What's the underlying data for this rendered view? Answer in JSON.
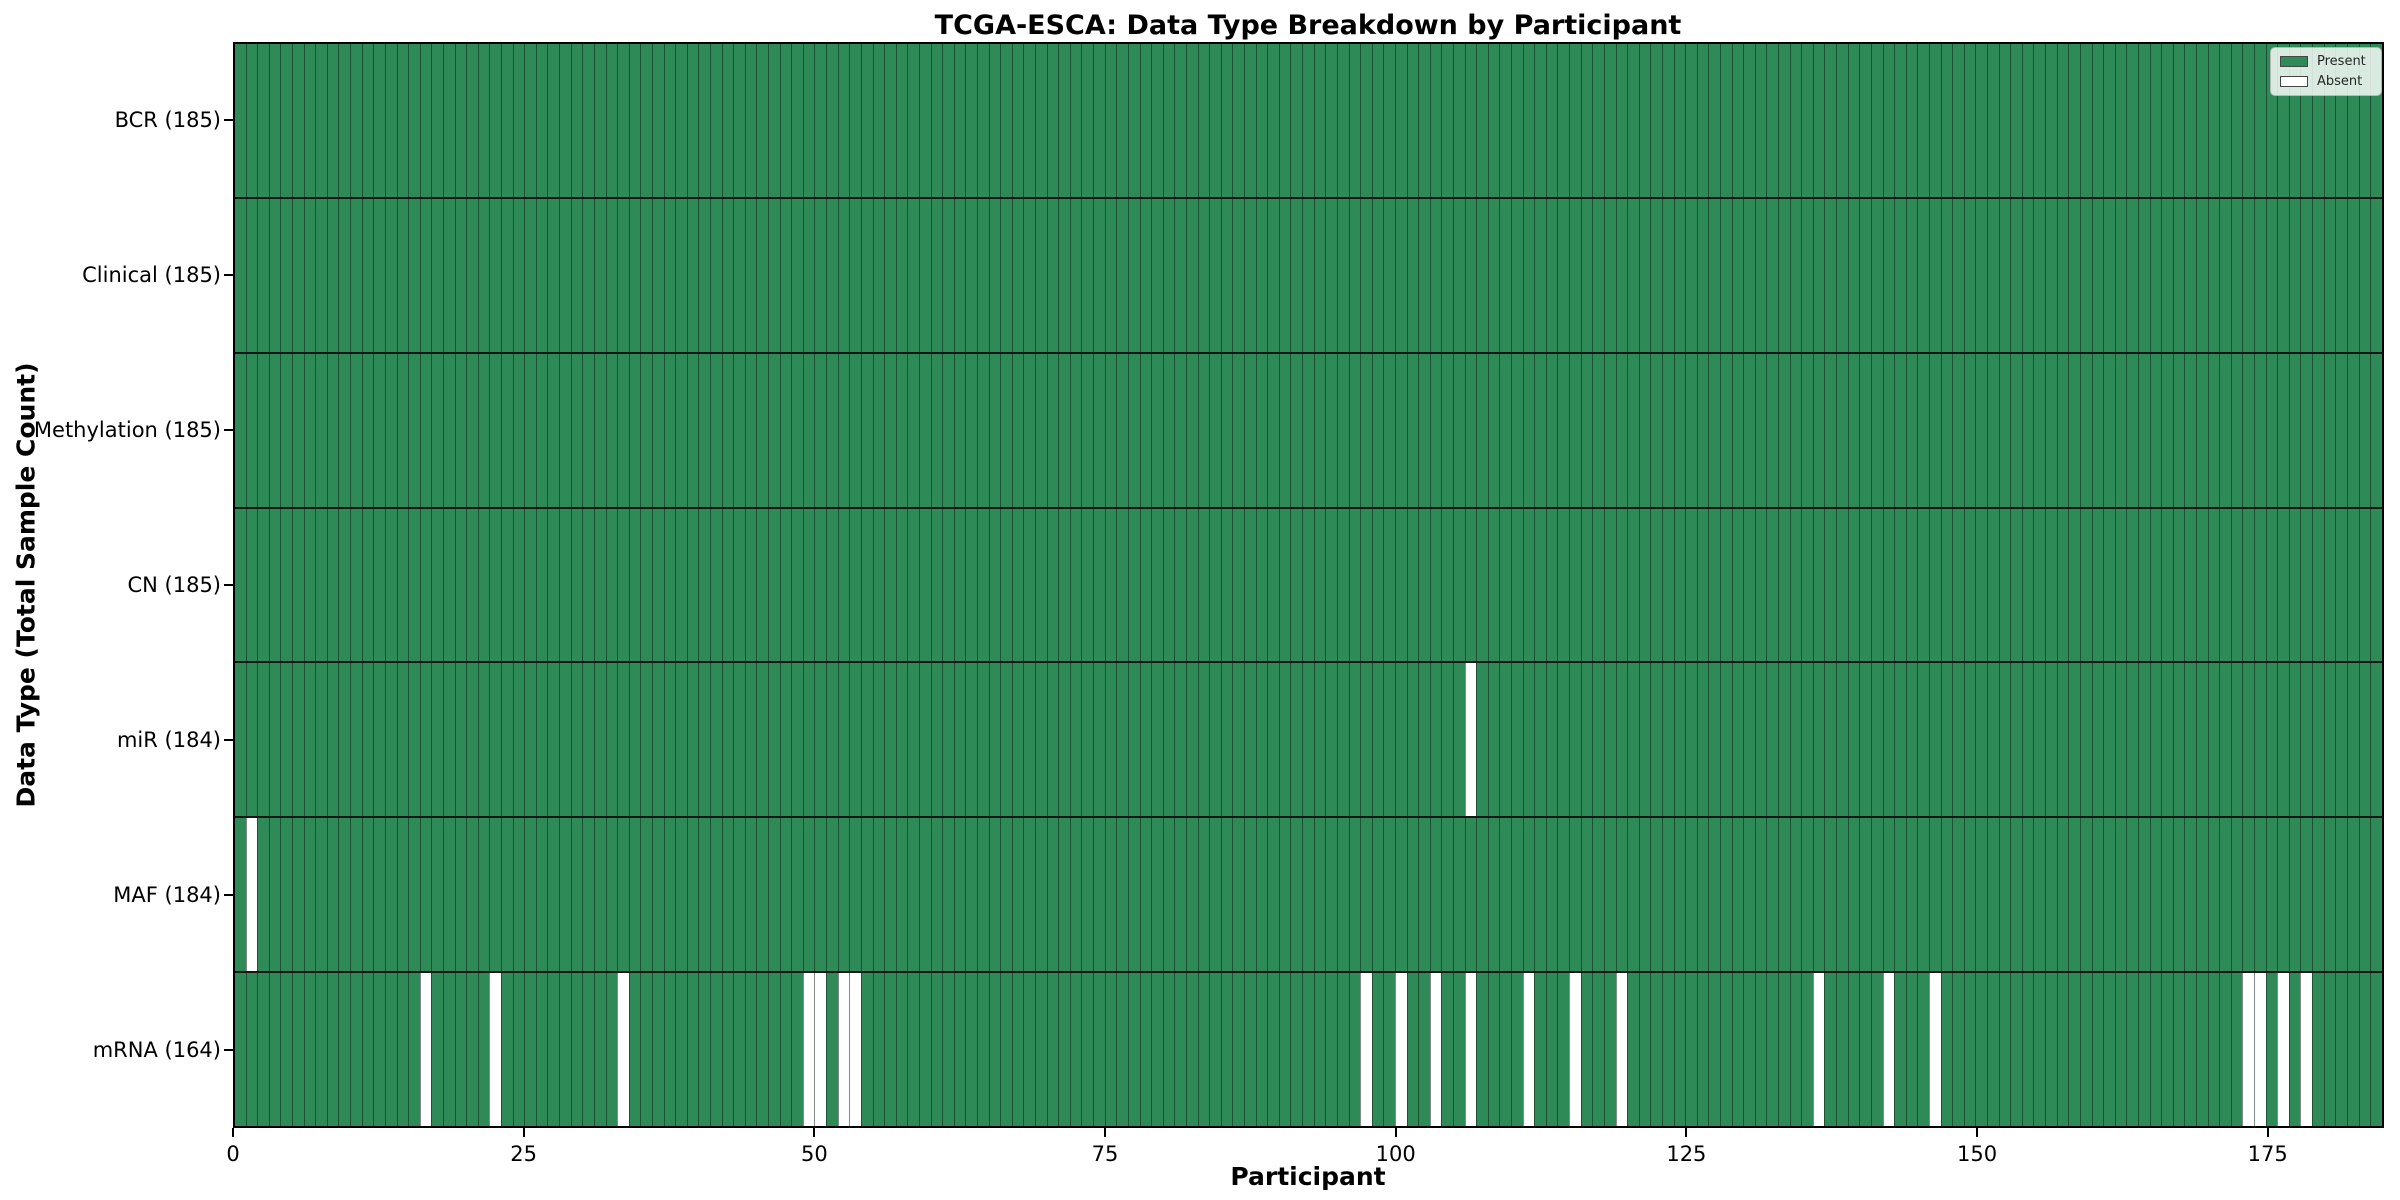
{
  "title": "TCGA-ESCA: Data Type Breakdown by Participant",
  "xlabel": "Participant",
  "ylabel": "Data Type (Total Sample Count)",
  "n_participants": 185,
  "x_ticks": [
    0,
    25,
    50,
    75,
    100,
    125,
    150,
    175
  ],
  "legend": {
    "entries": [
      {
        "label": "Present",
        "color": "#2e8b57"
      },
      {
        "label": "Absent",
        "color": "#ffffff"
      }
    ]
  },
  "colors": {
    "present": "#2e8b57",
    "absent": "#ffffff"
  },
  "chart_data": {
    "type": "heatmap",
    "x_range": [
      0,
      185
    ],
    "x_tick_labels": [
      "0",
      "25",
      "50",
      "75",
      "100",
      "125",
      "150",
      "175"
    ],
    "legend_position": "upper right",
    "grid": "cell-edges",
    "rows": [
      {
        "name": "BCR",
        "label": "BCR (185)",
        "present_count": 185,
        "absent_participants": []
      },
      {
        "name": "Clinical",
        "label": "Clinical (185)",
        "present_count": 185,
        "absent_participants": []
      },
      {
        "name": "Methylation",
        "label": "Methylation (185)",
        "present_count": 185,
        "absent_participants": []
      },
      {
        "name": "CN",
        "label": "CN (185)",
        "present_count": 185,
        "absent_participants": []
      },
      {
        "name": "miR",
        "label": "miR (184)",
        "present_count": 184,
        "absent_participants": [
          106
        ]
      },
      {
        "name": "MAF",
        "label": "MAF (184)",
        "present_count": 184,
        "absent_participants": [
          1
        ]
      },
      {
        "name": "mRNA",
        "label": "mRNA (164)",
        "present_count": 164,
        "absent_participants": [
          16,
          22,
          33,
          49,
          50,
          52,
          53,
          97,
          100,
          103,
          106,
          111,
          115,
          119,
          136,
          142,
          146,
          173,
          174,
          176,
          178
        ]
      }
    ]
  }
}
